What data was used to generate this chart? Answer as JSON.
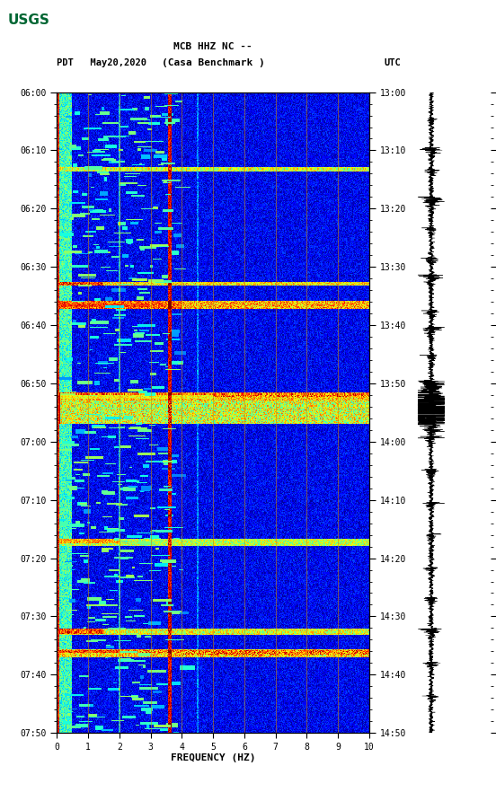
{
  "title_line1": "MCB HHZ NC --",
  "title_line2": "(Casa Benchmark )",
  "title_left": "PDT   May20,2020",
  "title_right": "UTC",
  "xlabel": "FREQUENCY (HZ)",
  "freq_min": 0,
  "freq_max": 10,
  "left_yticks": [
    "06:00",
    "06:10",
    "06:20",
    "06:30",
    "06:40",
    "06:50",
    "07:00",
    "07:10",
    "07:20",
    "07:30",
    "07:40",
    "07:50"
  ],
  "right_yticks": [
    "13:00",
    "13:10",
    "13:20",
    "13:30",
    "13:40",
    "13:50",
    "14:00",
    "14:10",
    "14:20",
    "14:30",
    "14:40",
    "14:50"
  ],
  "xticks": [
    0,
    1,
    2,
    3,
    4,
    5,
    6,
    7,
    8,
    9,
    10
  ],
  "vertical_lines_freq": [
    1,
    2,
    3,
    4,
    5,
    6,
    7,
    8,
    9
  ],
  "background_color": "white",
  "spectrogram_cmap": "jet",
  "usgs_logo_color": "#006633",
  "tick_label_fontsize": 7,
  "axis_label_fontsize": 8,
  "title_fontsize": 8,
  "noise_seed": 12345,
  "n_time_bins": 660,
  "n_freq_bins": 400
}
